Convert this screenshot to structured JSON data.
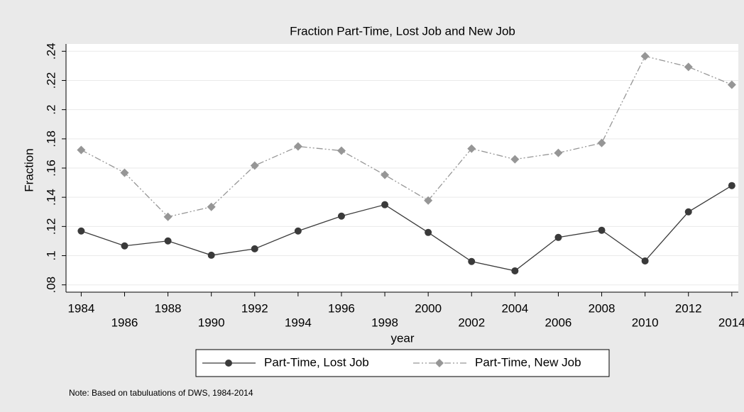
{
  "chart_data": {
    "type": "line",
    "title": "Fraction Part-Time, Lost Job and New Job",
    "x_label": "year",
    "y_label": "Fraction",
    "note": "Note: Based on tabuluations of DWS, 1984-2014",
    "x": [
      1984,
      1986,
      1988,
      1990,
      1992,
      1994,
      1996,
      1998,
      2000,
      2002,
      2004,
      2006,
      2008,
      2010,
      2012,
      2014
    ],
    "series": [
      {
        "name": "Part-Time, Lost Job",
        "color": "#3a3a3a",
        "line_style": "solid",
        "marker": "circle",
        "values": [
          0.1169,
          0.1067,
          0.1101,
          0.1003,
          0.1047,
          0.1169,
          0.1271,
          0.1349,
          0.1159,
          0.096,
          0.0896,
          0.1125,
          0.1174,
          0.0964,
          0.13,
          0.148
        ]
      },
      {
        "name": "Part-Time, New Job",
        "color": "#969696",
        "line_style": "dash-dot",
        "marker": "diamond",
        "values": [
          0.1724,
          0.1568,
          0.1266,
          0.1334,
          0.1617,
          0.1748,
          0.1719,
          0.1553,
          0.1378,
          0.1733,
          0.166,
          0.1704,
          0.1772,
          0.2366,
          0.2293,
          0.2171
        ]
      }
    ],
    "xlim": [
      1983.3,
      2014.3
    ],
    "ylim": [
      0.075,
      0.245
    ],
    "xticks": [
      1984,
      1986,
      1988,
      1990,
      1992,
      1994,
      1996,
      1998,
      2000,
      2002,
      2004,
      2006,
      2008,
      2010,
      2012,
      2014
    ],
    "yticks": [
      {
        "value": 0.08,
        "label": ".08"
      },
      {
        "value": 0.1,
        "label": ".1"
      },
      {
        "value": 0.12,
        "label": ".12"
      },
      {
        "value": 0.14,
        "label": ".14"
      },
      {
        "value": 0.16,
        "label": ".16"
      },
      {
        "value": 0.18,
        "label": ".18"
      },
      {
        "value": 0.2,
        "label": ".2"
      },
      {
        "value": 0.22,
        "label": ".22"
      },
      {
        "value": 0.24,
        "label": ".24"
      }
    ],
    "grid": true,
    "legend_position": "bottom"
  }
}
